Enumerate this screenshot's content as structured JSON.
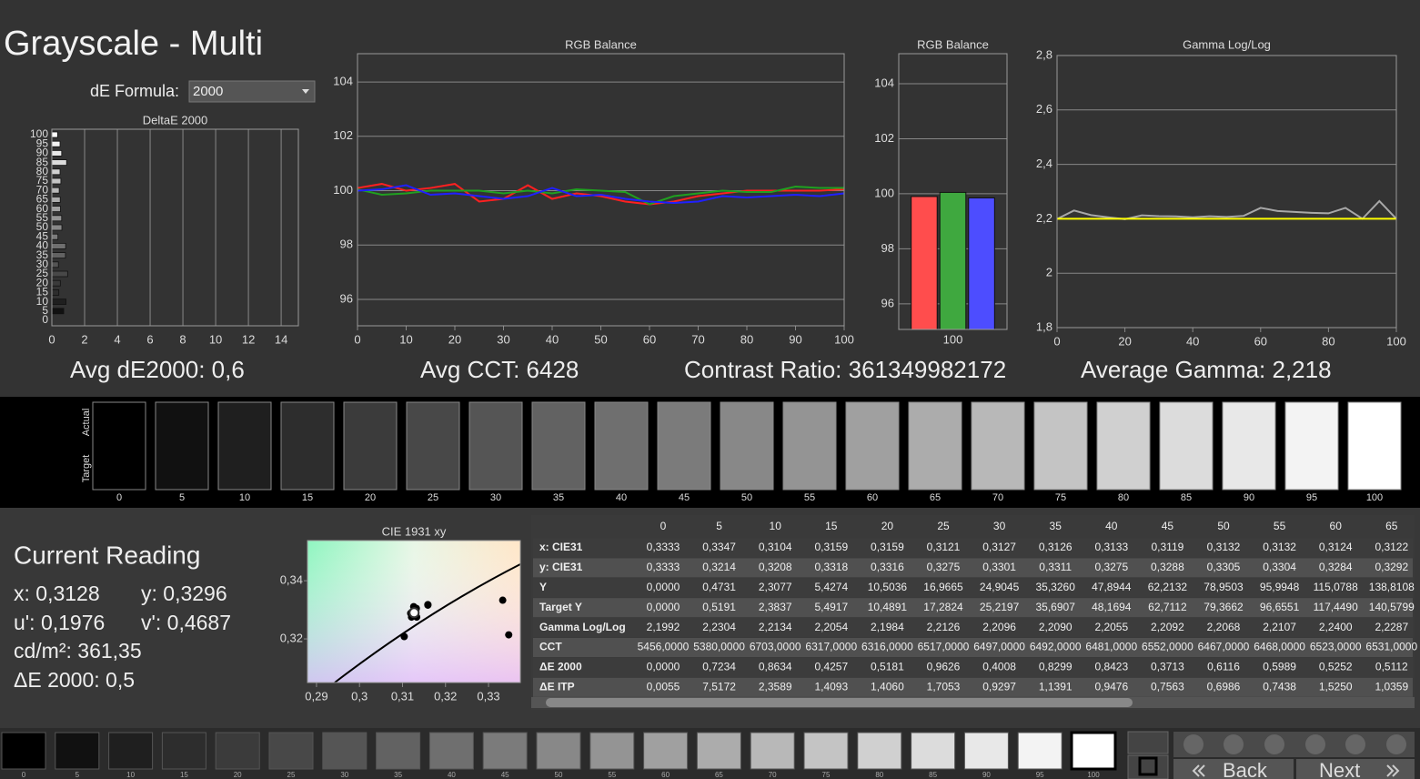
{
  "title": "Grayscale - Multi",
  "de_formula": {
    "label": "dE Formula:",
    "value": "2000"
  },
  "chart_data": [
    {
      "type": "hbar",
      "title": "DeltaE 2000",
      "categories": [
        "0",
        "5",
        "10",
        "15",
        "20",
        "25",
        "30",
        "35",
        "40",
        "45",
        "50",
        "55",
        "60",
        "65",
        "70",
        "75",
        "80",
        "85",
        "90",
        "95",
        "100"
      ],
      "values": [
        0,
        0.7234,
        0.8634,
        0.4257,
        0.5181,
        0.9626,
        0.4008,
        0.8299,
        0.8423,
        0.3713,
        0.6116,
        0.5989,
        0.5252,
        0.5112,
        0.45,
        0.55,
        0.5,
        0.9,
        0.6,
        0.5,
        0.35
      ],
      "xlim": [
        0,
        15.05
      ],
      "xticks": [
        0,
        2,
        4,
        6,
        8,
        10,
        12,
        14
      ],
      "grid": true
    },
    {
      "type": "line",
      "title": "RGB Balance",
      "x": [
        0,
        5,
        10,
        15,
        20,
        25,
        30,
        35,
        40,
        45,
        50,
        55,
        60,
        65,
        70,
        75,
        80,
        85,
        90,
        95,
        100
      ],
      "series": [
        {
          "color": "#ff2020",
          "values": [
            100.1,
            100.25,
            100,
            100.1,
            100.25,
            99.6,
            99.7,
            100.2,
            99.7,
            99.9,
            99.8,
            99.6,
            99.5,
            99.6,
            99.8,
            99.9,
            100,
            100,
            100,
            100,
            100.05
          ]
        },
        {
          "color": "#20a020",
          "values": [
            100.05,
            99.85,
            99.9,
            100,
            100,
            100,
            99.9,
            100,
            99.9,
            100.05,
            100,
            99.95,
            99.5,
            99.8,
            99.9,
            100,
            99.95,
            99.95,
            100.15,
            100.1,
            100.1
          ]
        },
        {
          "color": "#2020ff",
          "values": [
            100,
            100.05,
            100.2,
            99.85,
            99.9,
            99.8,
            99.7,
            99.8,
            100.1,
            99.8,
            99.85,
            99.7,
            99.6,
            99.55,
            99.6,
            99.8,
            99.75,
            99.8,
            99.85,
            99.8,
            99.9
          ]
        }
      ],
      "xlim": [
        0,
        100
      ],
      "xticks": [
        0,
        10,
        20,
        30,
        40,
        50,
        60,
        70,
        80,
        90,
        100
      ],
      "ylim": [
        95.03,
        105.04
      ],
      "yticks": [
        96,
        98,
        100,
        102,
        104
      ],
      "grid": true
    },
    {
      "type": "bar",
      "title": "RGB Balance",
      "categories": [
        "100"
      ],
      "series": [
        {
          "color": "#ff4d4d",
          "values": [
            99.9
          ]
        },
        {
          "color": "#3fa83f",
          "values": [
            100.05
          ]
        },
        {
          "color": "#4d4dff",
          "values": [
            99.85
          ]
        }
      ],
      "ylim": [
        95.07,
        105.09
      ],
      "yticks": [
        96,
        98,
        100,
        102,
        104
      ],
      "grid": true
    },
    {
      "type": "line",
      "title": "Gamma Log/Log",
      "x": [
        0,
        5,
        10,
        15,
        20,
        25,
        30,
        35,
        40,
        45,
        50,
        55,
        60,
        65,
        70,
        75,
        80,
        85,
        90,
        95,
        100
      ],
      "series": [
        {
          "color": "#a8a8a8",
          "values": [
            2.1992,
            2.2304,
            2.2134,
            2.2054,
            2.1984,
            2.2126,
            2.2096,
            2.209,
            2.2055,
            2.2092,
            2.2068,
            2.2107,
            2.24,
            2.2287,
            2.225,
            2.222,
            2.22,
            2.24,
            2.2,
            2.265,
            2.2
          ]
        },
        {
          "color": "#ffff00",
          "values": [
            2.2,
            2.2,
            2.2,
            2.2,
            2.2,
            2.2,
            2.2,
            2.2,
            2.2,
            2.2,
            2.2,
            2.2,
            2.2,
            2.2,
            2.2,
            2.2,
            2.2,
            2.2,
            2.2,
            2.2,
            2.2
          ]
        }
      ],
      "xlim": [
        0,
        100
      ],
      "xticks": [
        0,
        20,
        40,
        60,
        80,
        100
      ],
      "ylim": [
        1.8,
        2.8
      ],
      "yticks": [
        {
          "value": 1.8,
          "label": "1,8"
        },
        2,
        {
          "value": 2.2,
          "label": "2,2"
        },
        {
          "value": 2.4,
          "label": "2,4"
        },
        {
          "value": 2.6,
          "label": "2,6"
        },
        {
          "value": 2.8,
          "label": "2,8"
        }
      ],
      "grid": true
    },
    {
      "type": "scatter",
      "title": "CIE 1931 xy",
      "series": [
        {
          "color": "#000000",
          "x": [
            0.3333,
            0.3347,
            0.3104,
            0.3159,
            0.3159,
            0.3121,
            0.3127,
            0.3126,
            0.3133,
            0.3119,
            0.3132,
            0.3132,
            0.3124,
            0.3122
          ],
          "y": [
            0.3333,
            0.3214,
            0.3208,
            0.3318,
            0.3316,
            0.3275,
            0.3301,
            0.3311,
            0.3275,
            0.3288,
            0.3305,
            0.3304,
            0.3284,
            0.3292
          ]
        },
        {
          "color": "#ffffff",
          "x": [
            0.3127
          ],
          "y": [
            0.329
          ]
        }
      ],
      "xlim": [
        0.2879,
        0.3374
      ],
      "xticks": [
        {
          "value": 0.29,
          "label": "0,29"
        },
        {
          "value": 0.3,
          "label": "0,3"
        },
        {
          "value": 0.31,
          "label": "0,31"
        },
        {
          "value": 0.32,
          "label": "0,32"
        },
        {
          "value": 0.33,
          "label": "0,33"
        }
      ],
      "ylim": [
        0.305,
        0.3538
      ],
      "yticks": [
        {
          "value": 0.32,
          "label": "0,32"
        },
        {
          "value": 0.34,
          "label": "0,34"
        }
      ]
    }
  ],
  "stats": [
    "Avg dE2000: 0,6",
    "Avg CCT: 6428",
    "Contrast Ratio: 361349982172",
    "Average Gamma: 2,218"
  ],
  "swatch_strip": {
    "row_labels": [
      "Actual",
      "Target"
    ],
    "labels": [
      "0",
      "5",
      "10",
      "15",
      "20",
      "25",
      "30",
      "35",
      "40",
      "45",
      "50",
      "55",
      "60",
      "65",
      "70",
      "75",
      "80",
      "85",
      "90",
      "95",
      "100"
    ]
  },
  "current_reading": {
    "title": "Current Reading",
    "x": "x: 0,3128",
    "y": "y: 0,3296",
    "u": "u': 0,1976",
    "v": "v': 0,4687",
    "luminance": "cd/m²: 361,35",
    "delta_e": "ΔE 2000: 0,5"
  },
  "table": {
    "columns": [
      "0",
      "5",
      "10",
      "15",
      "20",
      "25",
      "30",
      "35",
      "40",
      "45",
      "50",
      "55",
      "60",
      "65"
    ],
    "rows": [
      {
        "label": "x: CIE31",
        "cells": [
          "0,3333",
          "0,3347",
          "0,3104",
          "0,3159",
          "0,3159",
          "0,3121",
          "0,3127",
          "0,3126",
          "0,3133",
          "0,3119",
          "0,3132",
          "0,3132",
          "0,3124",
          "0,3122"
        ]
      },
      {
        "label": "y: CIE31",
        "cells": [
          "0,3333",
          "0,3214",
          "0,3208",
          "0,3318",
          "0,3316",
          "0,3275",
          "0,3301",
          "0,3311",
          "0,3275",
          "0,3288",
          "0,3305",
          "0,3304",
          "0,3284",
          "0,3292"
        ]
      },
      {
        "label": "Y",
        "cells": [
          "0,0000",
          "0,4731",
          "2,3077",
          "5,4274",
          "10,5036",
          "16,9665",
          "24,9045",
          "35,3260",
          "47,8944",
          "62,2132",
          "78,9503",
          "95,9948",
          "115,0788",
          "138,8108"
        ]
      },
      {
        "label": "Target Y",
        "cells": [
          "0,0000",
          "0,5191",
          "2,3837",
          "5,4917",
          "10,4891",
          "17,2824",
          "25,2197",
          "35,6907",
          "48,1694",
          "62,7112",
          "79,3662",
          "96,6551",
          "117,4490",
          "140,5799"
        ]
      },
      {
        "label": "Gamma Log/Log",
        "cells": [
          "2,1992",
          "2,2304",
          "2,2134",
          "2,2054",
          "2,1984",
          "2,2126",
          "2,2096",
          "2,2090",
          "2,2055",
          "2,2092",
          "2,2068",
          "2,2107",
          "2,2400",
          "2,2287"
        ]
      },
      {
        "label": "CCT",
        "cells": [
          "5456,0000",
          "5380,0000",
          "6703,0000",
          "6317,0000",
          "6316,0000",
          "6517,0000",
          "6497,0000",
          "6492,0000",
          "6481,0000",
          "6552,0000",
          "6467,0000",
          "6468,0000",
          "6523,0000",
          "6531,0000"
        ]
      },
      {
        "label": "ΔE 2000",
        "cells": [
          "0,0000",
          "0,7234",
          "0,8634",
          "0,4257",
          "0,5181",
          "0,9626",
          "0,4008",
          "0,8299",
          "0,8423",
          "0,3713",
          "0,6116",
          "0,5989",
          "0,5252",
          "0,5112"
        ]
      },
      {
        "label": "ΔE ITP",
        "cells": [
          "0,0055",
          "7,5172",
          "2,3589",
          "1,4093",
          "1,4060",
          "1,7053",
          "0,9297",
          "1,1391",
          "0,9476",
          "0,7563",
          "0,6986",
          "0,7438",
          "1,5250",
          "1,0359"
        ]
      }
    ]
  },
  "bottom_bar": {
    "swatch_labels": [
      "0",
      "5",
      "10",
      "15",
      "20",
      "25",
      "30",
      "35",
      "40",
      "45",
      "50",
      "55",
      "60",
      "65",
      "70",
      "75",
      "80",
      "85",
      "90",
      "95",
      "100"
    ],
    "buttons": [
      "Back",
      "Next"
    ]
  }
}
